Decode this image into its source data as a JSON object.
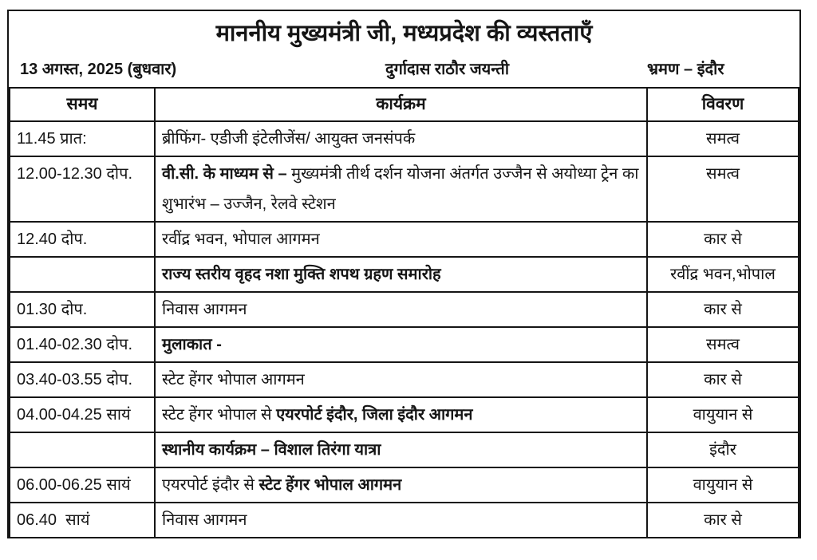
{
  "title": "माननीय मुख्यमंत्री जी, मध्यप्रदेश की व्यस्तताएँ",
  "header": {
    "date": "13 अगस्त, 2025 (बुधवार)",
    "event": "दुर्गादास राठौर जयन्ती",
    "trip": "भ्रमण – इंदौर"
  },
  "table": {
    "columns": [
      "समय",
      "कार्यक्रम",
      "विवरण"
    ],
    "rows": [
      {
        "time": "11.45 प्रात:",
        "program": [
          {
            "t": "ब्रीफिंग- एडीजी इंटेलीजेंस/ आयुक्त जनसंपर्क",
            "b": false
          }
        ],
        "detail": "समत्व"
      },
      {
        "time": "12.00-12.30 दोप.",
        "program": [
          {
            "t": "वी.सी. के माध्यम से – ",
            "b": true
          },
          {
            "t": "मुख्यमंत्री तीर्थ दर्शन योजना अंतर्गत उज्जैन से अयोध्या ट्रेन का शुभारंभ – उज्जैन, रेलवे स्टेशन",
            "b": false
          }
        ],
        "detail": "समत्व"
      },
      {
        "time": "12.40 दोप.",
        "program": [
          {
            "t": "रवींद्र भवन, भोपाल आगमन",
            "b": false
          }
        ],
        "detail": "कार से"
      },
      {
        "time": "",
        "program": [
          {
            "t": "राज्य स्तरीय वृहद नशा मुक्ति शपथ ग्रहण समारोह",
            "b": true
          }
        ],
        "detail": "रवींद्र भवन,भोपाल"
      },
      {
        "time": "01.30 दोप.",
        "program": [
          {
            "t": "निवास आगमन",
            "b": false
          }
        ],
        "detail": "कार से"
      },
      {
        "time": "01.40-02.30 दोप.",
        "program": [
          {
            "t": "मुलाकात -",
            "b": true
          }
        ],
        "detail": "समत्व"
      },
      {
        "time": "03.40-03.55 दोप.",
        "program": [
          {
            "t": "स्टेट हेंगर भोपाल आगमन",
            "b": false
          }
        ],
        "detail": "कार से"
      },
      {
        "time": "04.00-04.25 सायं",
        "program": [
          {
            "t": "स्टेट हेंगर भोपाल से ",
            "b": false
          },
          {
            "t": "एयरपोर्ट इंदौर, जिला इंदौर आगमन",
            "b": true
          }
        ],
        "detail": "वायुयान से"
      },
      {
        "time": "",
        "program": [
          {
            "t": "स्थानीय कार्यक्रम – विशाल तिरंगा यात्रा",
            "b": true
          }
        ],
        "detail": "इंदौर"
      },
      {
        "time": "06.00-06.25 सायं",
        "program": [
          {
            "t": "एयरपोर्ट इंदौर से ",
            "b": false
          },
          {
            "t": "स्टेट हेंगर भोपाल आगमन",
            "b": true
          }
        ],
        "detail": "वायुयान से"
      },
      {
        "time": "06.40  सायं",
        "program": [
          {
            "t": "निवास आगमन",
            "b": false
          }
        ],
        "detail": "कार से"
      }
    ]
  },
  "colors": {
    "text": "#151515",
    "border": "#151515",
    "background": "#ffffff"
  }
}
